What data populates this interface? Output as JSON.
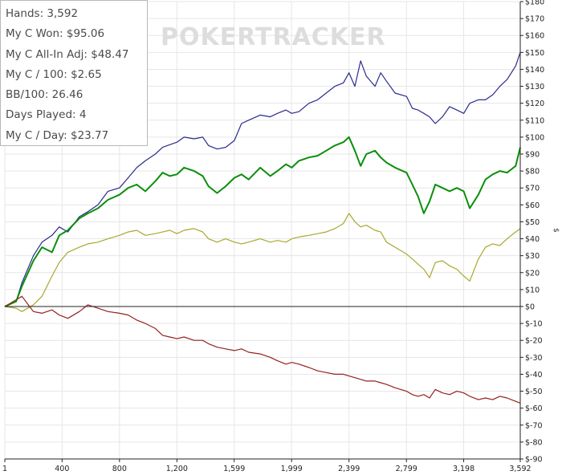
{
  "stats": [
    "Hands: 3,592",
    "My C Won: $95.06",
    "My C All-In Adj: $48.47",
    "My C / 100: $2.65",
    "BB/100: 26.46",
    "Days Played: 4",
    "My C / Day: $23.77"
  ],
  "watermark": {
    "left": "POKER",
    "right": "TRACKER"
  },
  "colors": {
    "blue": "#2b2b8e",
    "green": "#0a8f0a",
    "olive": "#a8a830",
    "red": "#962020",
    "grid": "#e6e6e6",
    "axis": "#222222",
    "watermark": "#dddddd"
  },
  "chart_data": {
    "type": "line",
    "ylabel": "$",
    "xlim": [
      1,
      3592
    ],
    "ylim": [
      -90,
      180
    ],
    "x_ticks": [
      1,
      400,
      800,
      1200,
      1599,
      1999,
      2399,
      2799,
      3198,
      3592
    ],
    "x_tick_labels": [
      "1",
      "400",
      "800",
      "1,200",
      "1,599",
      "1,999",
      "2,399",
      "2,799",
      "3,198",
      "3,592"
    ],
    "y_ticks": [
      -90,
      -80,
      -70,
      -60,
      -50,
      -40,
      -30,
      -20,
      -10,
      0,
      10,
      20,
      30,
      40,
      50,
      60,
      70,
      80,
      90,
      100,
      110,
      120,
      130,
      140,
      150,
      160,
      170,
      180
    ],
    "y_tick_labels": [
      "$-90",
      "$-80",
      "$-70",
      "$-60",
      "$-50",
      "$-40",
      "$-30",
      "$-20",
      "$-10",
      "$0",
      "$10",
      "$20",
      "$30",
      "$40",
      "$50",
      "$60",
      "$70",
      "$80",
      "$90",
      "$100",
      "$110",
      "$120",
      "$130",
      "$140",
      "$150",
      "$160",
      "$170",
      "$180"
    ],
    "grid": true,
    "series": [
      {
        "color": "blue",
        "points": [
          [
            1,
            0
          ],
          [
            80,
            3
          ],
          [
            120,
            14
          ],
          [
            200,
            30
          ],
          [
            260,
            38
          ],
          [
            330,
            42
          ],
          [
            380,
            47
          ],
          [
            440,
            44
          ],
          [
            520,
            53
          ],
          [
            580,
            56
          ],
          [
            650,
            60
          ],
          [
            720,
            68
          ],
          [
            800,
            70
          ],
          [
            860,
            76
          ],
          [
            920,
            82
          ],
          [
            980,
            86
          ],
          [
            1050,
            90
          ],
          [
            1100,
            94
          ],
          [
            1200,
            97
          ],
          [
            1250,
            100
          ],
          [
            1320,
            99
          ],
          [
            1380,
            100
          ],
          [
            1420,
            95
          ],
          [
            1480,
            93
          ],
          [
            1540,
            94
          ],
          [
            1600,
            98
          ],
          [
            1650,
            108
          ],
          [
            1700,
            110
          ],
          [
            1780,
            113
          ],
          [
            1850,
            112
          ],
          [
            1900,
            114
          ],
          [
            1960,
            116
          ],
          [
            2000,
            114
          ],
          [
            2050,
            115
          ],
          [
            2120,
            120
          ],
          [
            2180,
            122
          ],
          [
            2240,
            126
          ],
          [
            2300,
            130
          ],
          [
            2360,
            132
          ],
          [
            2399,
            138
          ],
          [
            2440,
            130
          ],
          [
            2480,
            145
          ],
          [
            2520,
            136
          ],
          [
            2580,
            130
          ],
          [
            2620,
            138
          ],
          [
            2660,
            133
          ],
          [
            2720,
            126
          ],
          [
            2800,
            124
          ],
          [
            2840,
            117
          ],
          [
            2880,
            116
          ],
          [
            2920,
            114
          ],
          [
            2960,
            112
          ],
          [
            3000,
            108
          ],
          [
            3050,
            112
          ],
          [
            3100,
            118
          ],
          [
            3150,
            116
          ],
          [
            3198,
            114
          ],
          [
            3240,
            120
          ],
          [
            3300,
            122
          ],
          [
            3350,
            122
          ],
          [
            3400,
            125
          ],
          [
            3450,
            130
          ],
          [
            3500,
            134
          ],
          [
            3560,
            142
          ],
          [
            3592,
            150
          ]
        ]
      },
      {
        "color": "green",
        "points": [
          [
            1,
            0
          ],
          [
            80,
            3
          ],
          [
            120,
            12
          ],
          [
            200,
            27
          ],
          [
            260,
            35
          ],
          [
            330,
            32
          ],
          [
            380,
            42
          ],
          [
            440,
            45
          ],
          [
            520,
            52
          ],
          [
            580,
            55
          ],
          [
            650,
            58
          ],
          [
            720,
            63
          ],
          [
            800,
            66
          ],
          [
            860,
            70
          ],
          [
            920,
            72
          ],
          [
            980,
            68
          ],
          [
            1050,
            74
          ],
          [
            1100,
            79
          ],
          [
            1150,
            77
          ],
          [
            1200,
            78
          ],
          [
            1250,
            82
          ],
          [
            1320,
            80
          ],
          [
            1380,
            77
          ],
          [
            1420,
            71
          ],
          [
            1480,
            67
          ],
          [
            1540,
            71
          ],
          [
            1600,
            76
          ],
          [
            1650,
            78
          ],
          [
            1700,
            75
          ],
          [
            1780,
            82
          ],
          [
            1850,
            77
          ],
          [
            1900,
            80
          ],
          [
            1960,
            84
          ],
          [
            2000,
            82
          ],
          [
            2050,
            86
          ],
          [
            2120,
            88
          ],
          [
            2180,
            89
          ],
          [
            2240,
            92
          ],
          [
            2300,
            95
          ],
          [
            2360,
            97
          ],
          [
            2399,
            100
          ],
          [
            2440,
            92
          ],
          [
            2480,
            83
          ],
          [
            2520,
            90
          ],
          [
            2580,
            92
          ],
          [
            2620,
            88
          ],
          [
            2660,
            85
          ],
          [
            2720,
            82
          ],
          [
            2800,
            79
          ],
          [
            2840,
            72
          ],
          [
            2880,
            65
          ],
          [
            2920,
            55
          ],
          [
            2960,
            62
          ],
          [
            3000,
            72
          ],
          [
            3050,
            70
          ],
          [
            3100,
            68
          ],
          [
            3150,
            70
          ],
          [
            3198,
            68
          ],
          [
            3240,
            58
          ],
          [
            3300,
            66
          ],
          [
            3350,
            75
          ],
          [
            3400,
            78
          ],
          [
            3450,
            80
          ],
          [
            3500,
            79
          ],
          [
            3560,
            83
          ],
          [
            3592,
            94
          ]
        ]
      },
      {
        "color": "olive",
        "points": [
          [
            1,
            0
          ],
          [
            80,
            -1
          ],
          [
            120,
            -3
          ],
          [
            200,
            1
          ],
          [
            260,
            6
          ],
          [
            330,
            18
          ],
          [
            380,
            26
          ],
          [
            440,
            32
          ],
          [
            520,
            35
          ],
          [
            580,
            37
          ],
          [
            650,
            38
          ],
          [
            720,
            40
          ],
          [
            800,
            42
          ],
          [
            860,
            44
          ],
          [
            920,
            45
          ],
          [
            980,
            42
          ],
          [
            1050,
            43
          ],
          [
            1100,
            44
          ],
          [
            1150,
            45
          ],
          [
            1200,
            43
          ],
          [
            1250,
            45
          ],
          [
            1320,
            46
          ],
          [
            1380,
            44
          ],
          [
            1420,
            40
          ],
          [
            1480,
            38
          ],
          [
            1540,
            40
          ],
          [
            1600,
            38
          ],
          [
            1650,
            37
          ],
          [
            1700,
            38
          ],
          [
            1780,
            40
          ],
          [
            1850,
            38
          ],
          [
            1900,
            39
          ],
          [
            1960,
            38
          ],
          [
            2000,
            40
          ],
          [
            2050,
            41
          ],
          [
            2120,
            42
          ],
          [
            2180,
            43
          ],
          [
            2240,
            44
          ],
          [
            2300,
            46
          ],
          [
            2360,
            49
          ],
          [
            2399,
            55
          ],
          [
            2440,
            50
          ],
          [
            2480,
            47
          ],
          [
            2520,
            48
          ],
          [
            2580,
            45
          ],
          [
            2620,
            44
          ],
          [
            2660,
            38
          ],
          [
            2720,
            35
          ],
          [
            2800,
            31
          ],
          [
            2840,
            28
          ],
          [
            2880,
            25
          ],
          [
            2920,
            22
          ],
          [
            2960,
            17
          ],
          [
            3000,
            26
          ],
          [
            3050,
            27
          ],
          [
            3100,
            24
          ],
          [
            3150,
            22
          ],
          [
            3198,
            18
          ],
          [
            3240,
            15
          ],
          [
            3300,
            28
          ],
          [
            3350,
            35
          ],
          [
            3400,
            37
          ],
          [
            3450,
            36
          ],
          [
            3500,
            40
          ],
          [
            3560,
            44
          ],
          [
            3592,
            46
          ]
        ]
      },
      {
        "color": "red",
        "points": [
          [
            1,
            0
          ],
          [
            80,
            4
          ],
          [
            120,
            6
          ],
          [
            200,
            -3
          ],
          [
            260,
            -4
          ],
          [
            330,
            -2
          ],
          [
            380,
            -5
          ],
          [
            440,
            -7
          ],
          [
            520,
            -3
          ],
          [
            580,
            1
          ],
          [
            650,
            -1
          ],
          [
            720,
            -3
          ],
          [
            800,
            -4
          ],
          [
            860,
            -5
          ],
          [
            920,
            -8
          ],
          [
            980,
            -10
          ],
          [
            1050,
            -13
          ],
          [
            1100,
            -17
          ],
          [
            1150,
            -18
          ],
          [
            1200,
            -19
          ],
          [
            1250,
            -18
          ],
          [
            1320,
            -20
          ],
          [
            1380,
            -20
          ],
          [
            1420,
            -22
          ],
          [
            1480,
            -24
          ],
          [
            1540,
            -25
          ],
          [
            1600,
            -26
          ],
          [
            1650,
            -25
          ],
          [
            1700,
            -27
          ],
          [
            1780,
            -28
          ],
          [
            1850,
            -30
          ],
          [
            1900,
            -32
          ],
          [
            1960,
            -34
          ],
          [
            2000,
            -33
          ],
          [
            2050,
            -34
          ],
          [
            2120,
            -36
          ],
          [
            2180,
            -38
          ],
          [
            2240,
            -39
          ],
          [
            2300,
            -40
          ],
          [
            2360,
            -40
          ],
          [
            2399,
            -41
          ],
          [
            2440,
            -42
          ],
          [
            2480,
            -43
          ],
          [
            2520,
            -44
          ],
          [
            2580,
            -44
          ],
          [
            2620,
            -45
          ],
          [
            2660,
            -46
          ],
          [
            2720,
            -48
          ],
          [
            2800,
            -50
          ],
          [
            2840,
            -52
          ],
          [
            2880,
            -53
          ],
          [
            2920,
            -52
          ],
          [
            2960,
            -54
          ],
          [
            3000,
            -49
          ],
          [
            3050,
            -51
          ],
          [
            3100,
            -52
          ],
          [
            3150,
            -50
          ],
          [
            3198,
            -51
          ],
          [
            3240,
            -53
          ],
          [
            3300,
            -55
          ],
          [
            3350,
            -54
          ],
          [
            3400,
            -55
          ],
          [
            3450,
            -53
          ],
          [
            3500,
            -54
          ],
          [
            3560,
            -56
          ],
          [
            3592,
            -57
          ]
        ]
      }
    ]
  }
}
